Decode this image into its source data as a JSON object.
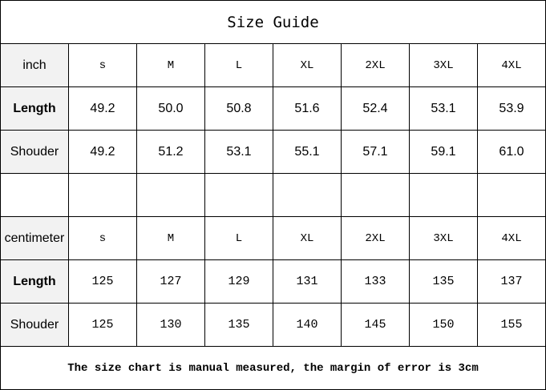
{
  "title": "Size Guide",
  "sizes": [
    "s",
    "M",
    "L",
    "XL",
    "2XL",
    "3XL",
    "4XL"
  ],
  "inch": {
    "unit_label": "inch",
    "rows": [
      {
        "label": "Length",
        "values": [
          "49.2",
          "50.0",
          "50.8",
          "51.6",
          "52.4",
          "53.1",
          "53.9"
        ]
      },
      {
        "label": "Shouder",
        "values": [
          "49.2",
          "51.2",
          "53.1",
          "55.1",
          "57.1",
          "59.1",
          "61.0"
        ]
      }
    ]
  },
  "centimeter": {
    "unit_label": "centimeter",
    "rows": [
      {
        "label": "Length",
        "values": [
          "125",
          "127",
          "129",
          "131",
          "133",
          "135",
          "137"
        ]
      },
      {
        "label": "Shouder",
        "values": [
          "125",
          "130",
          "135",
          "140",
          "145",
          "150",
          "155"
        ]
      }
    ]
  },
  "footer": "The size chart is manual measured, the margin of error is 3cm",
  "colors": {
    "label_bg": "#f2f2f2",
    "border": "#000000"
  }
}
